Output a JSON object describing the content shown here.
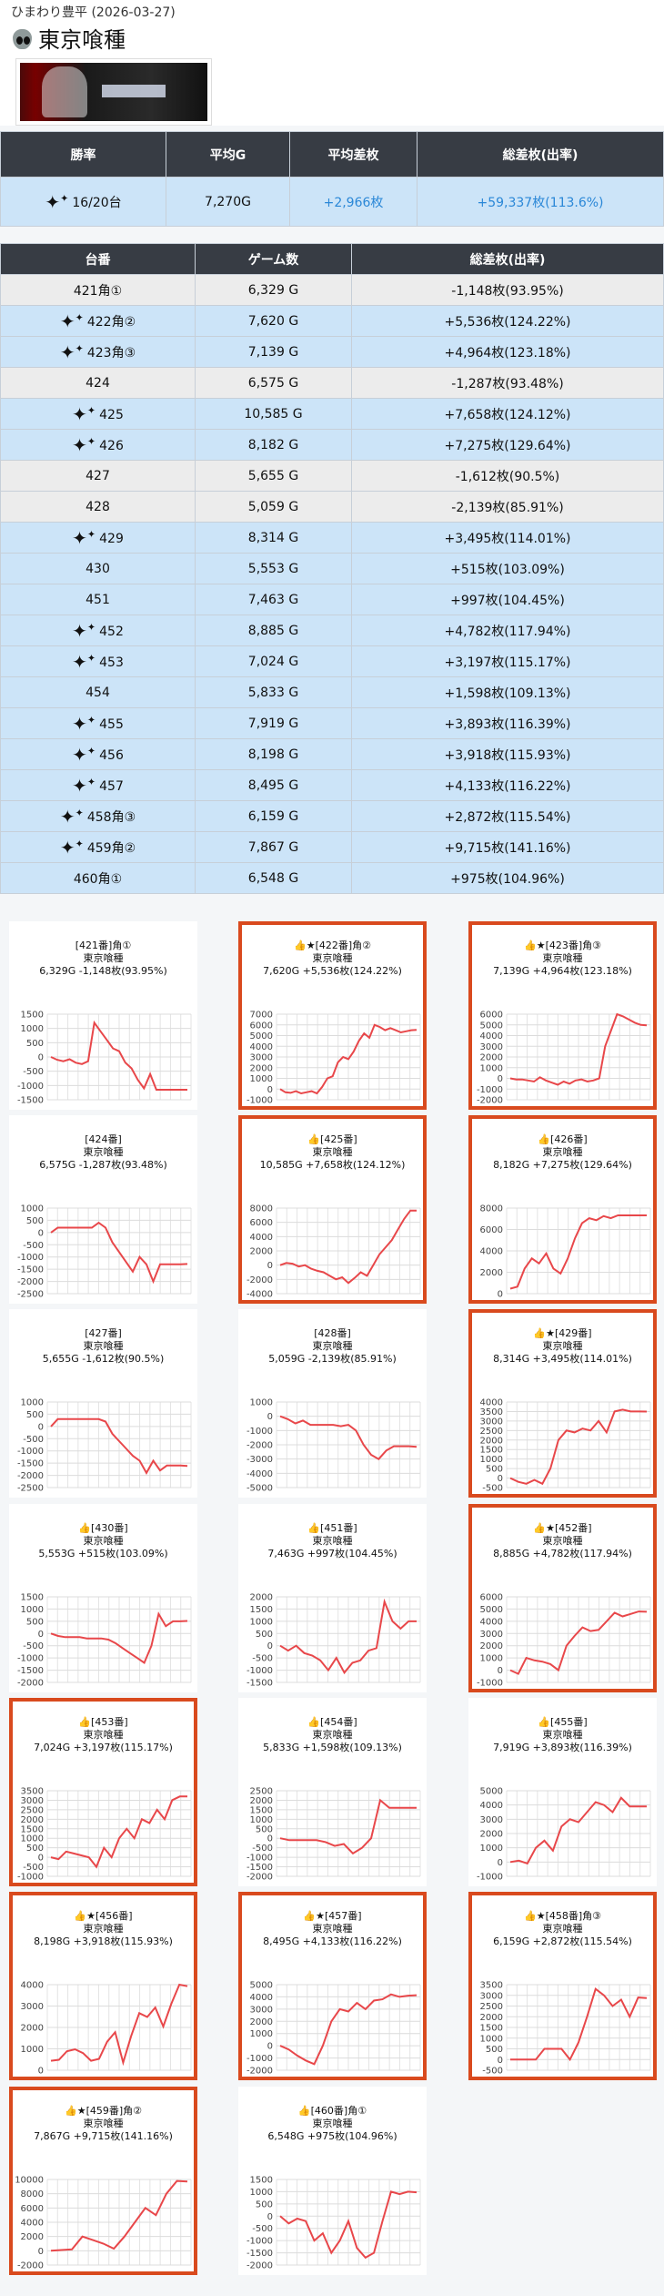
{
  "header": {
    "source": "ひまわり豊平 (2026-03-27)",
    "title": "東京喰種"
  },
  "summary": {
    "headers": [
      "勝率",
      "平均G",
      "平均差枚",
      "総差枚(出率)"
    ],
    "win_rate": "16/20台",
    "avg_games": "7,270G",
    "avg_diff": "+2,966枚",
    "total_diff": "+59,337枚(113.6%)"
  },
  "detail": {
    "headers": [
      "台番",
      "ゲーム数",
      "総差枚(出率)"
    ],
    "rows": [
      {
        "no": "421角①",
        "games": "6,329 G",
        "diff": "-1,148枚(93.95%)",
        "win": false
      },
      {
        "no": "422角②",
        "games": "7,620 G",
        "diff": "+5,536枚(124.22%)",
        "win": true
      },
      {
        "no": "423角③",
        "games": "7,139 G",
        "diff": "+4,964枚(123.18%)",
        "win": true
      },
      {
        "no": "424",
        "games": "6,575 G",
        "diff": "-1,287枚(93.48%)",
        "win": false
      },
      {
        "no": "425",
        "games": "10,585 G",
        "diff": "+7,658枚(124.12%)",
        "win": true
      },
      {
        "no": "426",
        "games": "8,182 G",
        "diff": "+7,275枚(129.64%)",
        "win": true
      },
      {
        "no": "427",
        "games": "5,655 G",
        "diff": "-1,612枚(90.5%)",
        "win": false
      },
      {
        "no": "428",
        "games": "5,059 G",
        "diff": "-2,139枚(85.91%)",
        "win": false
      },
      {
        "no": "429",
        "games": "8,314 G",
        "diff": "+3,495枚(114.01%)",
        "win": true
      },
      {
        "no": "430",
        "games": "5,553 G",
        "diff": "+515枚(103.09%)",
        "win": true
      },
      {
        "no": "451",
        "games": "7,463 G",
        "diff": "+997枚(104.45%)",
        "win": true
      },
      {
        "no": "452",
        "games": "8,885 G",
        "diff": "+4,782枚(117.94%)",
        "win": true
      },
      {
        "no": "453",
        "games": "7,024 G",
        "diff": "+3,197枚(115.17%)",
        "win": true
      },
      {
        "no": "454",
        "games": "5,833 G",
        "diff": "+1,598枚(109.13%)",
        "win": true
      },
      {
        "no": "455",
        "games": "7,919 G",
        "diff": "+3,893枚(116.39%)",
        "win": true
      },
      {
        "no": "456",
        "games": "8,198 G",
        "diff": "+3,918枚(115.93%)",
        "win": true
      },
      {
        "no": "457",
        "games": "8,495 G",
        "diff": "+4,133枚(116.22%)",
        "win": true
      },
      {
        "no": "458角③",
        "games": "6,159 G",
        "diff": "+2,872枚(115.54%)",
        "win": true
      },
      {
        "no": "459角②",
        "games": "7,867 G",
        "diff": "+9,715枚(141.16%)",
        "win": true
      },
      {
        "no": "460角①",
        "games": "6,548 G",
        "diff": "+975枚(104.96%)",
        "win": true
      }
    ]
  },
  "highlight_color": "#d94a1e",
  "line_color": "#e8474a",
  "chart_data": [
    {
      "type": "line",
      "label": "[421番]角①",
      "machine": "東京喰種",
      "stats": "6,329G -1,148枚(93.95%)",
      "thumb": false,
      "star": false,
      "hl": false,
      "ticks": [
        "1500",
        "1000",
        "500",
        "0",
        "-500",
        "-1000",
        "-1500"
      ],
      "ylim": [
        -1500,
        1500
      ],
      "values": [
        0,
        -100,
        -150,
        -80,
        -200,
        -250,
        -150,
        1200,
        900,
        600,
        300,
        200,
        -200,
        -400,
        -800,
        -1100,
        -600,
        -1150,
        -1150,
        -1150,
        -1150,
        -1150,
        -1148
      ]
    },
    {
      "type": "line",
      "label": "[422番]角②",
      "machine": "東京喰種",
      "stats": "7,620G +5,536枚(124.22%)",
      "thumb": true,
      "star": true,
      "hl": true,
      "ticks": [
        "7000",
        "6000",
        "5000",
        "4000",
        "3000",
        "2000",
        "1000",
        "0",
        "-1000"
      ],
      "ylim": [
        -1000,
        7000
      ],
      "values": [
        0,
        -300,
        -350,
        -200,
        -400,
        -300,
        -200,
        -400,
        200,
        1000,
        1200,
        2500,
        3000,
        2800,
        3500,
        4500,
        5200,
        4800,
        6000,
        5800,
        5500,
        5700,
        5500,
        5300,
        5400,
        5500,
        5536
      ]
    },
    {
      "type": "line",
      "label": "[423番]角③",
      "machine": "東京喰種",
      "stats": "7,139G +4,964枚(123.18%)",
      "thumb": true,
      "star": true,
      "hl": true,
      "ticks": [
        "6000",
        "5000",
        "4000",
        "3000",
        "2000",
        "1000",
        "0",
        "-1000",
        "-2000"
      ],
      "ylim": [
        -2000,
        6000
      ],
      "values": [
        0,
        -100,
        -100,
        -200,
        -300,
        100,
        -200,
        -400,
        -600,
        -300,
        -500,
        -200,
        -100,
        -300,
        -200,
        0,
        3000,
        4500,
        6000,
        5800,
        5500,
        5200,
        5000,
        4964
      ]
    },
    {
      "type": "line",
      "label": "[424番]",
      "machine": "東京喰種",
      "stats": "6,575G -1,287枚(93.48%)",
      "thumb": false,
      "star": false,
      "hl": false,
      "ticks": [
        "1000",
        "500",
        "0",
        "-500",
        "-1000",
        "-1500",
        "-2000",
        "-2500"
      ],
      "ylim": [
        -2500,
        1000
      ],
      "values": [
        0,
        200,
        200,
        200,
        200,
        200,
        200,
        400,
        200,
        -400,
        -800,
        -1200,
        -1600,
        -1000,
        -1300,
        -2000,
        -1300,
        -1300,
        -1300,
        -1300,
        -1287
      ]
    },
    {
      "type": "line",
      "label": "[425番]",
      "machine": "東京喰種",
      "stats": "10,585G +7,658枚(124.12%)",
      "thumb": true,
      "star": false,
      "hl": true,
      "ticks": [
        "8000",
        "6000",
        "4000",
        "2000",
        "0",
        "-2000",
        "-4000"
      ],
      "ylim": [
        -4000,
        8000
      ],
      "values": [
        0,
        300,
        200,
        -200,
        0,
        -500,
        -800,
        -1000,
        -1500,
        -2000,
        -1700,
        -2500,
        -1800,
        -1000,
        -1500,
        0,
        1500,
        2500,
        3500,
        5000,
        6500,
        7658,
        7658
      ]
    },
    {
      "type": "line",
      "label": "[426番]",
      "machine": "東京喰種",
      "stats": "8,182G +7,275枚(129.64%)",
      "thumb": true,
      "star": false,
      "hl": true,
      "ticks": [
        "8000",
        "6000",
        "4000",
        "2000",
        "0"
      ],
      "ylim": [
        -500,
        8000
      ],
      "values": [
        0,
        200,
        2000,
        3000,
        2500,
        3500,
        2000,
        1500,
        3000,
        5000,
        6500,
        7000,
        6800,
        7200,
        7000,
        7275,
        7275,
        7275,
        7275,
        7275
      ]
    },
    {
      "type": "line",
      "label": "[427番]",
      "machine": "東京喰種",
      "stats": "5,655G -1,612枚(90.5%)",
      "thumb": false,
      "star": false,
      "hl": false,
      "ticks": [
        "1000",
        "500",
        "0",
        "-500",
        "-1000",
        "-1500",
        "-2000",
        "-2500"
      ],
      "ylim": [
        -2500,
        1000
      ],
      "values": [
        0,
        300,
        300,
        300,
        300,
        300,
        300,
        300,
        200,
        -300,
        -600,
        -900,
        -1200,
        -1400,
        -1900,
        -1400,
        -1800,
        -1600,
        -1600,
        -1600,
        -1612
      ]
    },
    {
      "type": "line",
      "label": "[428番]",
      "machine": "東京喰種",
      "stats": "5,059G -2,139枚(85.91%)",
      "thumb": false,
      "star": false,
      "hl": false,
      "ticks": [
        "1000",
        "0",
        "-1000",
        "-2000",
        "-3000",
        "-4000",
        "-5000"
      ],
      "ylim": [
        -5000,
        1000
      ],
      "values": [
        0,
        -200,
        -500,
        -300,
        -600,
        -600,
        -600,
        -600,
        -700,
        -600,
        -1000,
        -2000,
        -2700,
        -3000,
        -2400,
        -2100,
        -2100,
        -2100,
        -2139
      ]
    },
    {
      "type": "line",
      "label": "[429番]",
      "machine": "東京喰種",
      "stats": "8,314G +3,495枚(114.01%)",
      "thumb": true,
      "star": true,
      "hl": true,
      "ticks": [
        "4000",
        "3500",
        "3000",
        "2500",
        "2000",
        "1500",
        "1000",
        "500",
        "0",
        "-500"
      ],
      "ylim": [
        -500,
        4000
      ],
      "values": [
        0,
        -200,
        -300,
        -100,
        -300,
        500,
        2000,
        2500,
        2400,
        2600,
        2500,
        3000,
        2400,
        3500,
        3600,
        3500,
        3500,
        3495
      ]
    },
    {
      "type": "line",
      "label": "[430番]",
      "machine": "東京喰種",
      "stats": "5,553G +515枚(103.09%)",
      "thumb": true,
      "star": false,
      "hl": false,
      "ticks": [
        "1500",
        "1000",
        "500",
        "0",
        "-500",
        "-1000",
        "-1500",
        "-2000"
      ],
      "ylim": [
        -2000,
        1500
      ],
      "values": [
        0,
        -100,
        -150,
        -150,
        -150,
        -200,
        -200,
        -200,
        -250,
        -400,
        -600,
        -800,
        -1000,
        -1200,
        -500,
        800,
        300,
        500,
        500,
        515
      ]
    },
    {
      "type": "line",
      "label": "[451番]",
      "machine": "東京喰種",
      "stats": "7,463G +997枚(104.45%)",
      "thumb": true,
      "star": false,
      "hl": false,
      "ticks": [
        "2000",
        "1500",
        "1000",
        "500",
        "0",
        "-500",
        "-1000",
        "-1500"
      ],
      "ylim": [
        -1500,
        2000
      ],
      "values": [
        0,
        -200,
        0,
        -300,
        -400,
        -600,
        -1000,
        -500,
        -1100,
        -700,
        -600,
        -200,
        -100,
        1800,
        1000,
        700,
        1000,
        997
      ]
    },
    {
      "type": "line",
      "label": "[452番]",
      "machine": "東京喰種",
      "stats": "8,885G +4,782枚(117.94%)",
      "thumb": true,
      "star": true,
      "hl": true,
      "ticks": [
        "6000",
        "5000",
        "4000",
        "3000",
        "2000",
        "1000",
        "0",
        "-1000"
      ],
      "ylim": [
        -1000,
        6000
      ],
      "values": [
        0,
        -300,
        1000,
        800,
        700,
        500,
        0,
        2000,
        2800,
        3500,
        3200,
        3300,
        4000,
        4700,
        4400,
        4600,
        4800,
        4782
      ]
    },
    {
      "type": "line",
      "label": "[453番]",
      "machine": "東京喰種",
      "stats": "7,024G +3,197枚(115.17%)",
      "thumb": true,
      "star": false,
      "hl": true,
      "ticks": [
        "3500",
        "3000",
        "2500",
        "2000",
        "1500",
        "1000",
        "500",
        "0",
        "-500",
        "-1000"
      ],
      "ylim": [
        -1000,
        3500
      ],
      "values": [
        0,
        -100,
        300,
        200,
        100,
        0,
        -500,
        500,
        0,
        1000,
        1500,
        1000,
        2000,
        1800,
        2500,
        2000,
        3000,
        3200,
        3197
      ]
    },
    {
      "type": "line",
      "label": "[454番]",
      "machine": "東京喰種",
      "stats": "5,833G +1,598枚(109.13%)",
      "thumb": true,
      "star": false,
      "hl": false,
      "ticks": [
        "2500",
        "2000",
        "1500",
        "1000",
        "500",
        "0",
        "-500",
        "-1000",
        "-1500",
        "-2000"
      ],
      "ylim": [
        -2000,
        2500
      ],
      "values": [
        0,
        -100,
        -100,
        -100,
        -100,
        -200,
        -400,
        -300,
        -800,
        -500,
        0,
        2000,
        1600,
        1600,
        1600,
        1598
      ]
    },
    {
      "type": "line",
      "label": "[455番]",
      "machine": "東京喰種",
      "stats": "7,919G +3,893枚(116.39%)",
      "thumb": true,
      "star": false,
      "hl": false,
      "ticks": [
        "5000",
        "4000",
        "3000",
        "2000",
        "1000",
        "0",
        "-1000"
      ],
      "ylim": [
        -1000,
        5000
      ],
      "values": [
        0,
        100,
        -100,
        1000,
        1500,
        800,
        2500,
        3000,
        2800,
        3500,
        4200,
        4000,
        3500,
        4500,
        3900,
        3900,
        3893
      ]
    },
    {
      "type": "line",
      "label": "[456番]",
      "machine": "東京喰種",
      "stats": "8,198G +3,918枚(115.93%)",
      "thumb": true,
      "star": true,
      "hl": true,
      "ticks": [
        "4000",
        "3000",
        "2000",
        "1000",
        "0"
      ],
      "ylim": [
        -500,
        4000
      ],
      "values": [
        0,
        50,
        500,
        600,
        400,
        0,
        100,
        1000,
        1500,
        -100,
        1300,
        2500,
        2300,
        2800,
        1800,
        3000,
        4000,
        3918
      ]
    },
    {
      "type": "line",
      "label": "[457番]",
      "machine": "東京喰種",
      "stats": "8,495G +4,133枚(116.22%)",
      "thumb": true,
      "star": true,
      "hl": true,
      "ticks": [
        "5000",
        "4000",
        "3000",
        "2000",
        "1000",
        "0",
        "-1000",
        "-2000"
      ],
      "ylim": [
        -2000,
        5000
      ],
      "values": [
        0,
        -300,
        -800,
        -1200,
        -1500,
        0,
        2000,
        3000,
        2800,
        3500,
        3000,
        3700,
        3800,
        4200,
        4000,
        4100,
        4133
      ]
    },
    {
      "type": "line",
      "label": "[458番]角③",
      "machine": "東京喰種",
      "stats": "6,159G +2,872枚(115.54%)",
      "thumb": true,
      "star": true,
      "hl": true,
      "ticks": [
        "3500",
        "3000",
        "2500",
        "2000",
        "1500",
        "1000",
        "500",
        "0",
        "-500"
      ],
      "ylim": [
        -500,
        3500
      ],
      "values": [
        0,
        0,
        0,
        0,
        500,
        500,
        500,
        0,
        800,
        2000,
        3300,
        3000,
        2500,
        2800,
        2000,
        2900,
        2872
      ]
    },
    {
      "type": "line",
      "label": "[459番]角②",
      "machine": "東京喰種",
      "stats": "7,867G +9,715枚(141.16%)",
      "thumb": true,
      "star": true,
      "hl": true,
      "ticks": [
        "10000",
        "8000",
        "6000",
        "4000",
        "2000",
        "0",
        "-2000"
      ],
      "ylim": [
        -2000,
        10000
      ],
      "values": [
        0,
        100,
        200,
        2000,
        1500,
        1000,
        300,
        2000,
        4000,
        6000,
        5000,
        8000,
        9800,
        9715
      ]
    },
    {
      "type": "line",
      "label": "[460番]角①",
      "machine": "東京喰種",
      "stats": "6,548G +975枚(104.96%)",
      "thumb": true,
      "star": false,
      "hl": false,
      "ticks": [
        "1500",
        "1000",
        "500",
        "0",
        "-500",
        "-1000",
        "-1500",
        "-2000"
      ],
      "ylim": [
        -2000,
        1500
      ],
      "values": [
        0,
        -300,
        -100,
        -200,
        -1000,
        -700,
        -1500,
        -1000,
        -200,
        -1300,
        -1700,
        -1500,
        -200,
        1000,
        900,
        1000,
        975
      ]
    }
  ]
}
